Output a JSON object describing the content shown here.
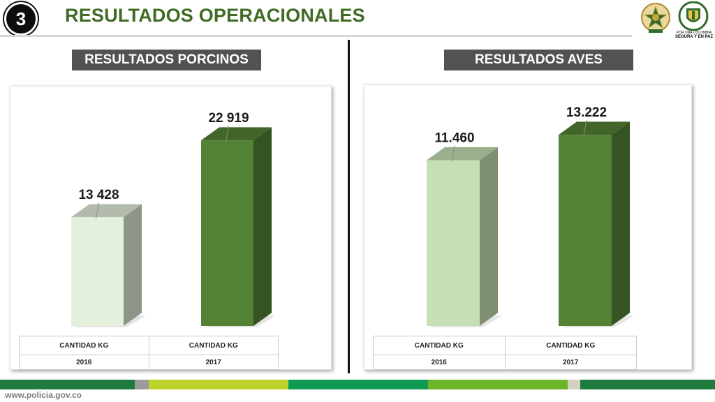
{
  "header": {
    "badge": "3",
    "title": "RESULTADOS OPERACIONALES",
    "logo_caption_small": "POR UNA COLOMBIA",
    "logo_caption_bold": "SEGURA Y EN PAZ"
  },
  "panels": [
    {
      "title": "RESULTADOS PORCINOS",
      "table": {
        "header": [
          "CANTIDAD KG",
          "CANTIDAD KG"
        ],
        "years": [
          "2016",
          "2017"
        ]
      }
    },
    {
      "title": "RESULTADOS AVES",
      "table": {
        "header": [
          "CANTIDAD KG",
          "CANTIDAD KG"
        ],
        "years": [
          "2016",
          "2017"
        ]
      }
    }
  ],
  "chart_data": [
    {
      "type": "bar",
      "categories": [
        "2016",
        "2017"
      ],
      "values": [
        13428,
        22919
      ],
      "data_labels": [
        "13 428",
        "22 919"
      ],
      "ylim": [
        0,
        25000
      ],
      "colors": [
        "#e4f0dc",
        "#548235"
      ]
    },
    {
      "type": "bar",
      "categories": [
        "2016",
        "2017"
      ],
      "values": [
        11460,
        13222
      ],
      "data_labels": [
        "11.460",
        "13.222"
      ],
      "ylim": [
        0,
        14000
      ],
      "colors": [
        "#c5e0b4",
        "#548235"
      ]
    }
  ],
  "footer": {
    "url": "www.policia.gov.co",
    "stripe_colors": [
      "#1e7b3e",
      "#9b9b9b",
      "#bdd22a",
      "#109b55",
      "#6cb527",
      "#d6d0c2",
      "#1e7b3e"
    ]
  }
}
